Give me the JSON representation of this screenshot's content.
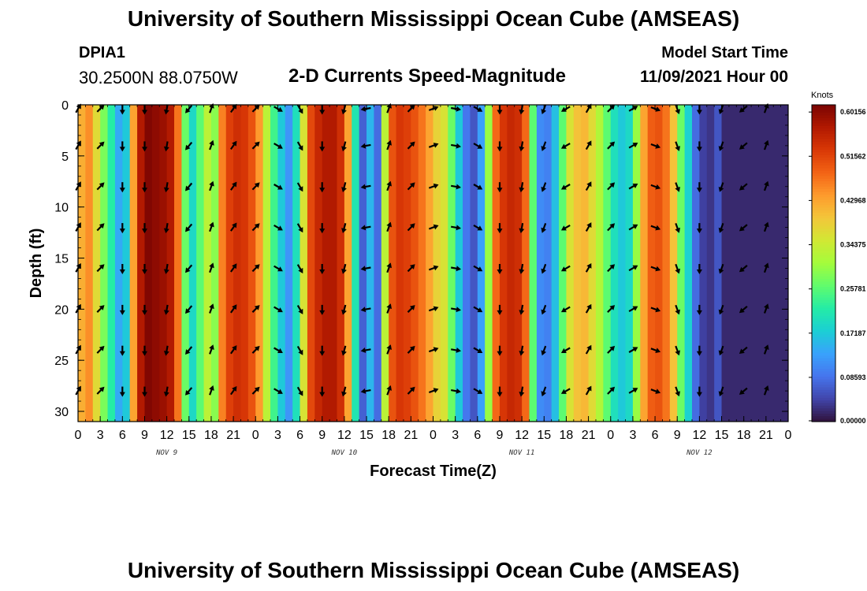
{
  "header": {
    "title": "University of Southern Mississippi Ocean Cube (AMSEAS)",
    "station": "DPIA1",
    "coords": "30.2500N  88.0750W",
    "subtitle": "2-D Currents Speed-Magnitude",
    "model_start_label": "Model Start Time",
    "model_start_value": "11/09/2021 Hour 00"
  },
  "footer": {
    "title": "University of Southern Mississippi Ocean Cube (AMSEAS)"
  },
  "colors": {
    "colormap": [
      "#30123b",
      "#4145ab",
      "#4675ed",
      "#39a2fc",
      "#1bcfd4",
      "#24eca6",
      "#61fc6c",
      "#a4fc3b",
      "#d1e834",
      "#f3c63a",
      "#fe9b2d",
      "#f36315",
      "#d93806",
      "#b11901",
      "#7a0402"
    ]
  },
  "chart_data": {
    "type": "heatmap",
    "title": "2-D Currents Speed-Magnitude",
    "xlabel": "Forecast Time(Z)",
    "ylabel": "Depth (ft)",
    "x_tick_labels": [
      "0",
      "3",
      "6",
      "9",
      "12",
      "15",
      "18",
      "21",
      "0",
      "3",
      "6",
      "9",
      "12",
      "15",
      "18",
      "21",
      "0",
      "3",
      "6",
      "9",
      "12",
      "15",
      "18",
      "21",
      "0",
      "3",
      "6",
      "9",
      "12",
      "15",
      "18",
      "21",
      "0"
    ],
    "x_range_hours": [
      0,
      96
    ],
    "date_labels": [
      {
        "hour": 12,
        "text": "NOV 9"
      },
      {
        "hour": 36,
        "text": "NOV 10"
      },
      {
        "hour": 60,
        "text": "NOV 11"
      },
      {
        "hour": 84,
        "text": "NOV 12"
      }
    ],
    "y_ticks": [
      0,
      5,
      10,
      15,
      20,
      25,
      30
    ],
    "y_range": [
      0,
      31
    ],
    "y_inverted": true,
    "colorbar": {
      "units": "Knots",
      "min": 0.0,
      "max": 0.6156,
      "tick_labels": [
        "0.00000",
        "0.08593",
        "0.17187",
        "0.25781",
        "0.34375",
        "0.42968",
        "0.51562",
        "0.60156"
      ]
    },
    "speed_by_hour": [
      {
        "hour": 0,
        "speed": 0.42
      },
      {
        "hour": 1,
        "speed": 0.45
      },
      {
        "hour": 2,
        "speed": 0.37
      },
      {
        "hour": 3,
        "speed": 0.28
      },
      {
        "hour": 4,
        "speed": 0.22
      },
      {
        "hour": 5,
        "speed": 0.14
      },
      {
        "hour": 6,
        "speed": 0.17
      },
      {
        "hour": 7,
        "speed": 0.43
      },
      {
        "hour": 8,
        "speed": 0.57
      },
      {
        "hour": 9,
        "speed": 0.61
      },
      {
        "hour": 10,
        "speed": 0.6
      },
      {
        "hour": 11,
        "speed": 0.59
      },
      {
        "hour": 12,
        "speed": 0.57
      },
      {
        "hour": 13,
        "speed": 0.47
      },
      {
        "hour": 14,
        "speed": 0.27
      },
      {
        "hour": 15,
        "speed": 0.19
      },
      {
        "hour": 16,
        "speed": 0.26
      },
      {
        "hour": 17,
        "speed": 0.33
      },
      {
        "hour": 18,
        "speed": 0.29
      },
      {
        "hour": 19,
        "speed": 0.46
      },
      {
        "hour": 20,
        "speed": 0.52
      },
      {
        "hour": 21,
        "speed": 0.54
      },
      {
        "hour": 22,
        "speed": 0.53
      },
      {
        "hour": 23,
        "speed": 0.5
      },
      {
        "hour": 24,
        "speed": 0.44
      },
      {
        "hour": 25,
        "speed": 0.33
      },
      {
        "hour": 26,
        "speed": 0.24
      },
      {
        "hour": 27,
        "speed": 0.17
      },
      {
        "hour": 28,
        "speed": 0.12
      },
      {
        "hour": 29,
        "speed": 0.2
      },
      {
        "hour": 30,
        "speed": 0.36
      },
      {
        "hour": 31,
        "speed": 0.51
      },
      {
        "hour": 32,
        "speed": 0.55
      },
      {
        "hour": 33,
        "speed": 0.57
      },
      {
        "hour": 34,
        "speed": 0.57
      },
      {
        "hour": 35,
        "speed": 0.54
      },
      {
        "hour": 36,
        "speed": 0.43
      },
      {
        "hour": 37,
        "speed": 0.21
      },
      {
        "hour": 38,
        "speed": 0.07
      },
      {
        "hour": 39,
        "speed": 0.15
      },
      {
        "hour": 40,
        "speed": 0.08
      },
      {
        "hour": 41,
        "speed": 0.33
      },
      {
        "hour": 42,
        "speed": 0.5
      },
      {
        "hour": 43,
        "speed": 0.53
      },
      {
        "hour": 44,
        "speed": 0.52
      },
      {
        "hour": 45,
        "speed": 0.5
      },
      {
        "hour": 46,
        "speed": 0.47
      },
      {
        "hour": 47,
        "speed": 0.43
      },
      {
        "hour": 48,
        "speed": 0.38
      },
      {
        "hour": 49,
        "speed": 0.36
      },
      {
        "hour": 50,
        "speed": 0.27
      },
      {
        "hour": 51,
        "speed": 0.17
      },
      {
        "hour": 52,
        "speed": 0.09
      },
      {
        "hour": 53,
        "speed": 0.06
      },
      {
        "hour": 54,
        "speed": 0.13
      },
      {
        "hour": 55,
        "speed": 0.3
      },
      {
        "hour": 56,
        "speed": 0.48
      },
      {
        "hour": 57,
        "speed": 0.53
      },
      {
        "hour": 58,
        "speed": 0.55
      },
      {
        "hour": 59,
        "speed": 0.54
      },
      {
        "hour": 60,
        "speed": 0.48
      },
      {
        "hour": 61,
        "speed": 0.26
      },
      {
        "hour": 62,
        "speed": 0.11
      },
      {
        "hour": 63,
        "speed": 0.1
      },
      {
        "hour": 64,
        "speed": 0.16
      },
      {
        "hour": 65,
        "speed": 0.26
      },
      {
        "hour": 66,
        "speed": 0.36
      },
      {
        "hour": 67,
        "speed": 0.4
      },
      {
        "hour": 68,
        "speed": 0.41
      },
      {
        "hour": 69,
        "speed": 0.37
      },
      {
        "hour": 70,
        "speed": 0.32
      },
      {
        "hour": 71,
        "speed": 0.26
      },
      {
        "hour": 72,
        "speed": 0.2
      },
      {
        "hour": 73,
        "speed": 0.17
      },
      {
        "hour": 74,
        "speed": 0.19
      },
      {
        "hour": 75,
        "speed": 0.3
      },
      {
        "hour": 76,
        "speed": 0.43
      },
      {
        "hour": 77,
        "speed": 0.49
      },
      {
        "hour": 78,
        "speed": 0.5
      },
      {
        "hour": 79,
        "speed": 0.47
      },
      {
        "hour": 80,
        "speed": 0.4
      },
      {
        "hour": 81,
        "speed": 0.27
      },
      {
        "hour": 82,
        "speed": 0.18
      },
      {
        "hour": 83,
        "speed": 0.08
      },
      {
        "hour": 84,
        "speed": 0.04
      },
      {
        "hour": 85,
        "speed": 0.03
      },
      {
        "hour": 86,
        "speed": 0.06
      }
    ],
    "arrow_depths_ft": [
      0,
      4,
      8,
      12,
      16,
      20,
      24,
      28
    ],
    "arrow_directions_deg": [
      {
        "hour": 0,
        "dir": 30
      },
      {
        "hour": 3,
        "dir": 45
      },
      {
        "hour": 6,
        "dir": 180
      },
      {
        "hour": 9,
        "dir": 180
      },
      {
        "hour": 12,
        "dir": 190
      },
      {
        "hour": 15,
        "dir": 220
      },
      {
        "hour": 18,
        "dir": 20
      },
      {
        "hour": 21,
        "dir": 35
      },
      {
        "hour": 24,
        "dir": 45
      },
      {
        "hour": 27,
        "dir": 120
      },
      {
        "hour": 30,
        "dir": 150
      },
      {
        "hour": 33,
        "dir": 180
      },
      {
        "hour": 36,
        "dir": 195
      },
      {
        "hour": 39,
        "dir": 260
      },
      {
        "hour": 42,
        "dir": 20
      },
      {
        "hour": 45,
        "dir": 45
      },
      {
        "hour": 48,
        "dir": 70
      },
      {
        "hour": 51,
        "dir": 100
      },
      {
        "hour": 54,
        "dir": 120
      },
      {
        "hour": 57,
        "dir": 180
      },
      {
        "hour": 60,
        "dir": 190
      },
      {
        "hour": 63,
        "dir": 200
      },
      {
        "hour": 66,
        "dir": 240
      },
      {
        "hour": 69,
        "dir": 30
      },
      {
        "hour": 72,
        "dir": 45
      },
      {
        "hour": 75,
        "dir": 60
      },
      {
        "hour": 78,
        "dir": 110
      },
      {
        "hour": 81,
        "dir": 160
      },
      {
        "hour": 84,
        "dir": 180
      },
      {
        "hour": 87,
        "dir": 200
      },
      {
        "hour": 90,
        "dir": 230
      },
      {
        "hour": 93,
        "dir": 20
      }
    ]
  }
}
